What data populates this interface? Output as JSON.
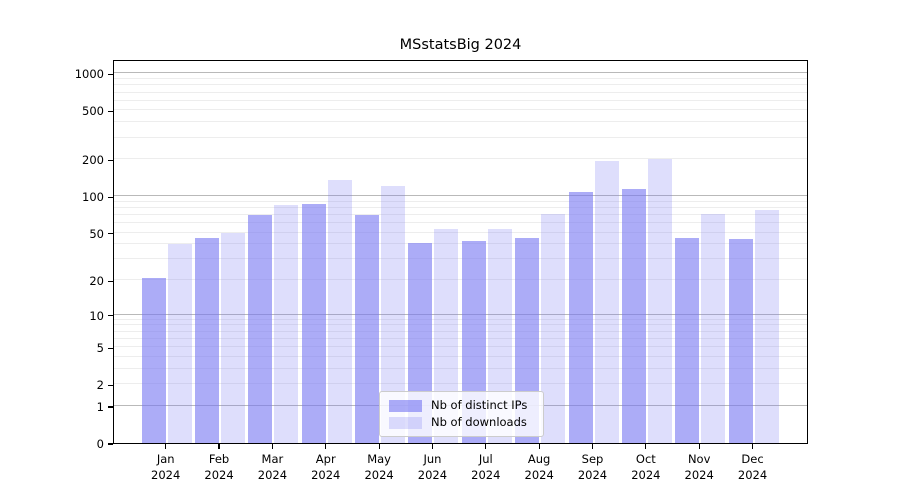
{
  "figure": {
    "background": "#ffffff"
  },
  "chart_data": {
    "type": "bar",
    "title": "MSstatsBig 2024",
    "xlabel": "",
    "ylabel": "",
    "x_year": "2024",
    "categories": [
      "Jan",
      "Feb",
      "Mar",
      "Apr",
      "May",
      "Jun",
      "Jul",
      "Aug",
      "Sep",
      "Oct",
      "Nov",
      "Dec"
    ],
    "series": [
      {
        "name": "Nb of distinct IPs",
        "color": "rgba(116,116,242,0.60)",
        "values": [
          21,
          45,
          70,
          86,
          70,
          41,
          43,
          45,
          108,
          114,
          45,
          44
        ]
      },
      {
        "name": "Nb of downloads",
        "color": "rgba(116,116,242,0.24)",
        "values": [
          40,
          50,
          85,
          135,
          120,
          54,
          54,
          72,
          195,
          203,
          72,
          77
        ]
      }
    ],
    "yscale": "log1p",
    "yticks": [
      0,
      1,
      2,
      5,
      10,
      20,
      50,
      100,
      200,
      500,
      1000
    ],
    "ylim": [
      0,
      1310
    ],
    "grid": true,
    "legend_position": "lower center",
    "colors": {
      "major_grid": "#b9b9b9",
      "minor_grid": "#ededed",
      "axis": "#000000",
      "text": "#000000"
    }
  }
}
